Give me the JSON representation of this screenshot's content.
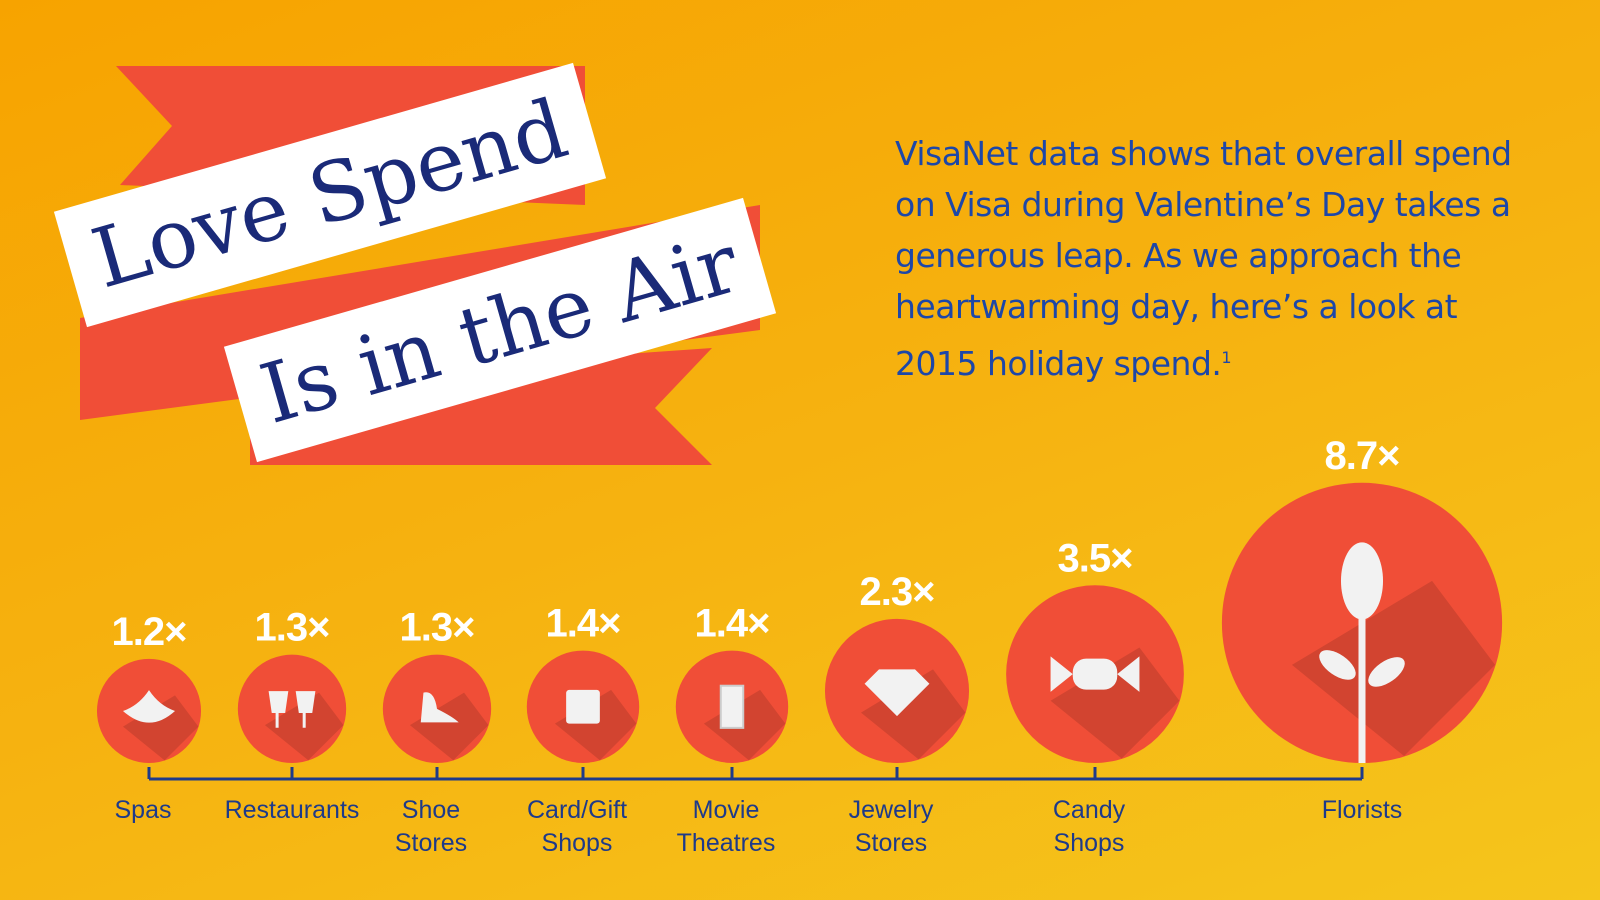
{
  "chart_data": {
    "type": "bubble",
    "title_lines": [
      "Love Spend",
      "Is in the Air"
    ],
    "description": "VisaNet data shows that overall spend on Visa during Valentine’s Day takes a generous leap. As we approach the heartwarming day, here’s a look at 2015 holiday spend.",
    "footnote_marker": "1",
    "categories": [
      "Spas",
      "Restaurants",
      "Shoe Stores",
      "Card/Gift Shops",
      "Movie Theatres",
      "Jewelry Stores",
      "Candy Shops",
      "Florists"
    ],
    "values": [
      1.2,
      1.3,
      1.3,
      1.4,
      1.4,
      2.3,
      3.5,
      8.7
    ],
    "value_labels": [
      "1.2×",
      "1.3×",
      "1.3×",
      "1.4×",
      "1.4×",
      "2.3×",
      "3.5×",
      "8.7×"
    ],
    "color": "#f04e37"
  }
}
